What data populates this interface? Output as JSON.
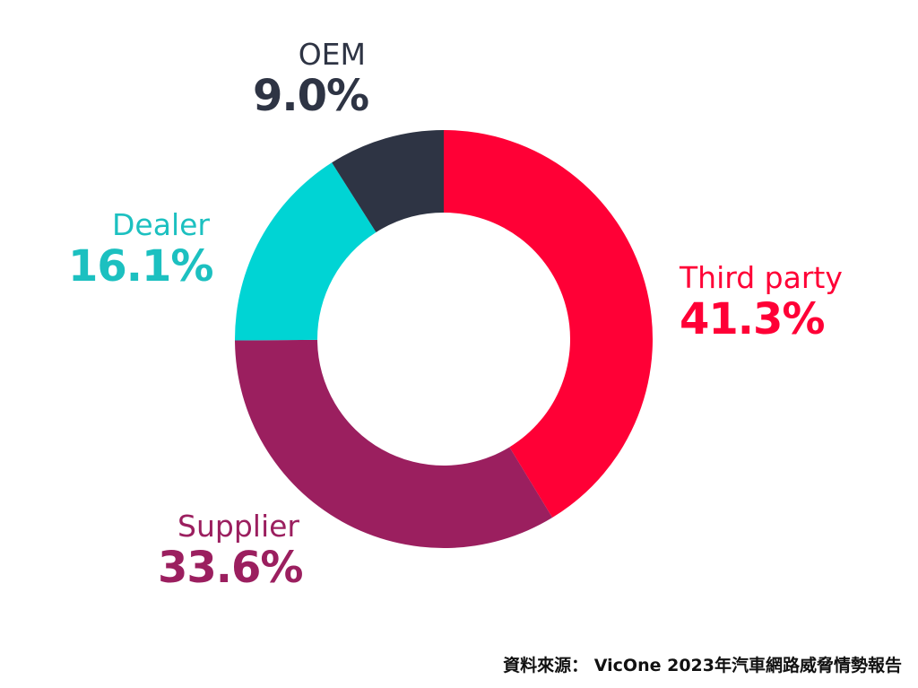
{
  "chart_data": {
    "type": "pie",
    "subtype": "donut",
    "title": "",
    "start": "top",
    "direction": "clockwise",
    "slices": [
      {
        "label": "Third party",
        "value": 41.3,
        "display": "41.3%",
        "color": "#FF0036"
      },
      {
        "label": "Supplier",
        "value": 33.6,
        "display": "33.6%",
        "color": "#9B1F5F"
      },
      {
        "label": "Dealer",
        "value": 16.1,
        "display": "16.1%",
        "color": "#00D4D4"
      },
      {
        "label": "OEM",
        "value": 9.0,
        "display": "9.0%",
        "color": "#2E3444"
      }
    ]
  },
  "label_colors": {
    "Third party": "#FF0036",
    "Supplier": "#9B1F5F",
    "Dealer": "#1CC0C0",
    "OEM": "#2E3444"
  },
  "source_note": "資料來源： VicOne 2023年汽車網路威脅情勢報告"
}
